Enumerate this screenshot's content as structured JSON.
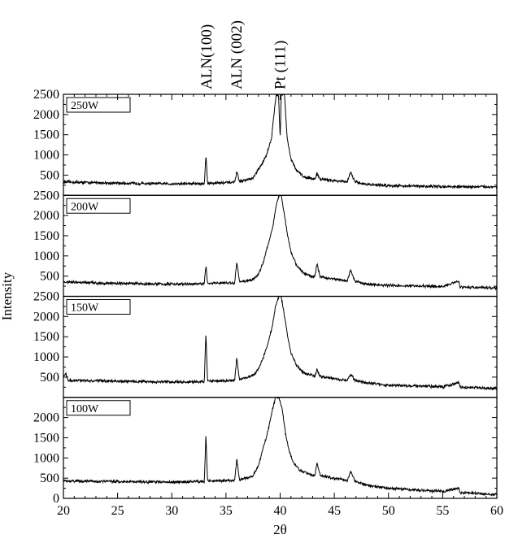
{
  "chart_data": {
    "type": "line",
    "xlabel": "2θ",
    "ylabel": "Intensity",
    "xlim": [
      20,
      60
    ],
    "ylim": [
      0,
      2500
    ],
    "x_ticks": [
      "20",
      "25",
      "30",
      "35",
      "40",
      "45",
      "50",
      "55",
      "60"
    ],
    "y_ticks_top": [
      "500",
      "1000",
      "1500",
      "2000",
      "2500"
    ],
    "y_ticks_panel": [
      "500",
      "1000",
      "1500",
      "2000",
      "2500"
    ],
    "y_ticks_bottom": [
      "0",
      "500",
      "1000",
      "1500",
      "2000"
    ],
    "peak_labels": [
      {
        "text": "ALN(100)",
        "x": 33.2
      },
      {
        "text": "ALN (002)",
        "x": 36.0
      },
      {
        "text": "Pt (111)",
        "x": 40.0
      }
    ],
    "grid": false,
    "legend_position": "top-left",
    "panels": [
      {
        "name": "250W",
        "background": 330,
        "end_level": 210,
        "points": [
          [
            20,
            330
          ],
          [
            25,
            300
          ],
          [
            30,
            285
          ],
          [
            33.0,
            290
          ],
          [
            33.15,
            1000
          ],
          [
            33.3,
            300
          ],
          [
            35.8,
            320
          ],
          [
            36.0,
            580
          ],
          [
            36.25,
            340
          ],
          [
            37.5,
            420
          ],
          [
            37.9,
            600
          ],
          [
            38.3,
            760
          ],
          [
            38.8,
            1050
          ],
          [
            39.2,
            1400
          ],
          [
            39.5,
            2200
          ],
          [
            39.65,
            2500
          ],
          [
            39.85,
            2500
          ],
          [
            40.0,
            1400
          ],
          [
            40.1,
            2500
          ],
          [
            40.4,
            2500
          ],
          [
            40.65,
            1400
          ],
          [
            41.0,
            900
          ],
          [
            41.5,
            620
          ],
          [
            42.2,
            450
          ],
          [
            43.2,
            400
          ],
          [
            43.4,
            540
          ],
          [
            43.7,
            400
          ],
          [
            46.2,
            330
          ],
          [
            46.5,
            580
          ],
          [
            46.9,
            330
          ],
          [
            48,
            270
          ],
          [
            50,
            240
          ],
          [
            55,
            215
          ],
          [
            60,
            210
          ]
        ]
      },
      {
        "name": "200W",
        "background": 350,
        "end_level": 200,
        "points": [
          [
            20,
            350
          ],
          [
            25,
            320
          ],
          [
            30,
            300
          ],
          [
            33.0,
            310
          ],
          [
            33.15,
            760
          ],
          [
            33.3,
            320
          ],
          [
            35.8,
            330
          ],
          [
            36.0,
            850
          ],
          [
            36.25,
            350
          ],
          [
            37.5,
            420
          ],
          [
            38.0,
            550
          ],
          [
            38.4,
            800
          ],
          [
            38.9,
            1300
          ],
          [
            39.3,
            1700
          ],
          [
            39.6,
            2200
          ],
          [
            39.9,
            2500
          ],
          [
            40.1,
            2500
          ],
          [
            40.4,
            2000
          ],
          [
            40.7,
            1500
          ],
          [
            41.0,
            1100
          ],
          [
            41.5,
            780
          ],
          [
            42.2,
            560
          ],
          [
            43.2,
            480
          ],
          [
            43.4,
            800
          ],
          [
            43.7,
            480
          ],
          [
            46.2,
            380
          ],
          [
            46.5,
            650
          ],
          [
            46.9,
            380
          ],
          [
            48,
            300
          ],
          [
            50,
            270
          ],
          [
            55,
            240
          ],
          [
            56.5,
            380
          ],
          [
            56.6,
            230
          ],
          [
            60,
            205
          ]
        ]
      },
      {
        "name": "150W",
        "background": 420,
        "end_level": 220,
        "points": [
          [
            20,
            480
          ],
          [
            20.2,
            600
          ],
          [
            20.4,
            420
          ],
          [
            25,
            400
          ],
          [
            30,
            380
          ],
          [
            33.0,
            390
          ],
          [
            33.15,
            1600
          ],
          [
            33.3,
            400
          ],
          [
            35.8,
            420
          ],
          [
            36.0,
            980
          ],
          [
            36.25,
            440
          ],
          [
            37.5,
            540
          ],
          [
            38.0,
            700
          ],
          [
            38.4,
            950
          ],
          [
            38.9,
            1350
          ],
          [
            39.3,
            1800
          ],
          [
            39.6,
            2300
          ],
          [
            39.9,
            2500
          ],
          [
            40.1,
            2500
          ],
          [
            40.4,
            2000
          ],
          [
            40.7,
            1500
          ],
          [
            41.0,
            1100
          ],
          [
            41.5,
            800
          ],
          [
            42.2,
            600
          ],
          [
            43.2,
            520
          ],
          [
            43.4,
            680
          ],
          [
            43.7,
            520
          ],
          [
            46.2,
            420
          ],
          [
            46.5,
            570
          ],
          [
            46.9,
            420
          ],
          [
            48,
            360
          ],
          [
            50,
            300
          ],
          [
            55,
            260
          ],
          [
            56.5,
            360
          ],
          [
            56.6,
            250
          ],
          [
            60,
            220
          ]
        ]
      },
      {
        "name": "100W",
        "background": 430,
        "end_level": 100,
        "points": [
          [
            20,
            430
          ],
          [
            25,
            420
          ],
          [
            30,
            400
          ],
          [
            33.0,
            420
          ],
          [
            33.15,
            1580
          ],
          [
            33.3,
            430
          ],
          [
            35.8,
            440
          ],
          [
            36.0,
            980
          ],
          [
            36.25,
            450
          ],
          [
            37.5,
            560
          ],
          [
            38.0,
            800
          ],
          [
            38.4,
            1200
          ],
          [
            38.9,
            1700
          ],
          [
            39.3,
            2200
          ],
          [
            39.6,
            2500
          ],
          [
            39.9,
            2500
          ],
          [
            40.2,
            2200
          ],
          [
            40.5,
            1600
          ],
          [
            40.8,
            1200
          ],
          [
            41.2,
            900
          ],
          [
            41.8,
            700
          ],
          [
            42.5,
            620
          ],
          [
            43.2,
            560
          ],
          [
            43.4,
            880
          ],
          [
            43.7,
            560
          ],
          [
            46.2,
            440
          ],
          [
            46.5,
            660
          ],
          [
            46.9,
            440
          ],
          [
            48,
            320
          ],
          [
            50,
            250
          ],
          [
            55,
            170
          ],
          [
            56.5,
            260
          ],
          [
            56.6,
            140
          ],
          [
            60,
            100
          ]
        ]
      }
    ]
  }
}
